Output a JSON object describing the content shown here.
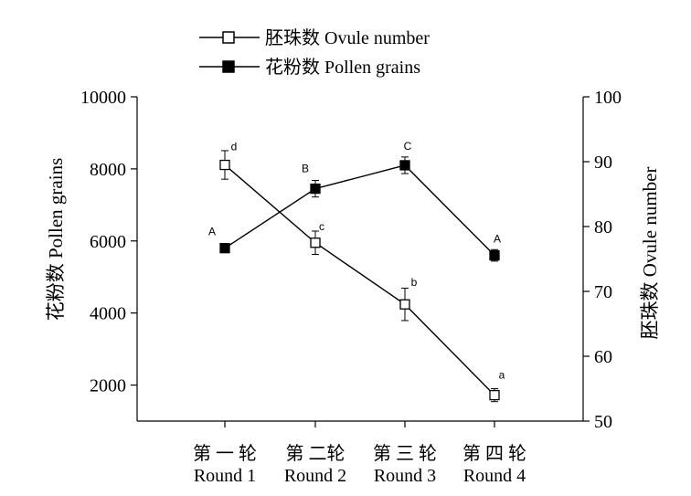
{
  "chart_data": {
    "type": "line",
    "categories": [
      [
        "第 一 轮",
        "Round 1"
      ],
      [
        "第 二轮",
        "Round 2"
      ],
      [
        "第 三 轮",
        "Round 3"
      ],
      [
        "第 四 轮",
        "Round 4"
      ]
    ],
    "legend": {
      "position": "top-center",
      "entries": [
        "胚珠数 Ovule number",
        "花粉数 Pollen grains"
      ]
    },
    "left_axis": {
      "label": "花粉数 Pollen grains",
      "range": [
        1000,
        10000
      ],
      "ticks": [
        2000,
        4000,
        6000,
        8000,
        10000
      ]
    },
    "right_axis": {
      "label": "胚珠数 Ovule number",
      "range": [
        50,
        100
      ],
      "ticks": [
        50,
        60,
        70,
        80,
        90,
        100
      ]
    },
    "grid": false,
    "series": [
      {
        "name": "胚珠数 Ovule number",
        "axis": "right",
        "marker": "open-square",
        "values": [
          89.5,
          77.5,
          68.0,
          54.0
        ],
        "errors": [
          2.2,
          1.8,
          2.5,
          1.0
        ],
        "labels": [
          "d",
          "c",
          "b",
          "a"
        ]
      },
      {
        "name": "花粉数 Pollen grains",
        "axis": "left",
        "marker": "filled-square",
        "values": [
          5800,
          7450,
          8100,
          5600
        ],
        "errors": [
          100,
          230,
          230,
          160
        ],
        "labels": [
          "A",
          "B",
          "C",
          "A"
        ]
      }
    ]
  }
}
